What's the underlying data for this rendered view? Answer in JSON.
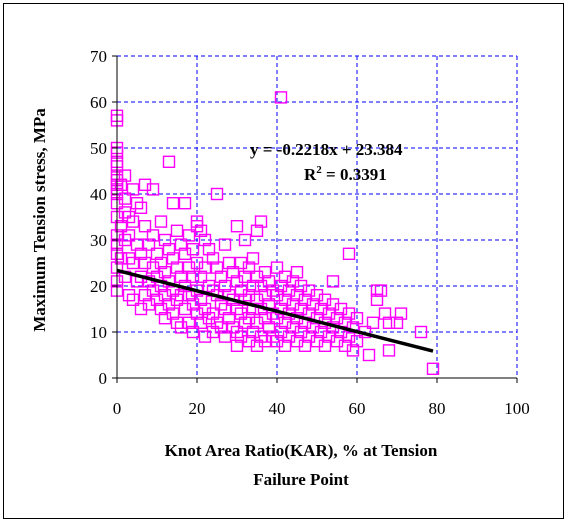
{
  "chart_data": {
    "type": "scatter",
    "title": "",
    "xlabel_line1": "Knot Area Ratio(KAR), % at Tension",
    "xlabel_line2": "Failure Point",
    "ylabel": "Maximum Tension stress, MPa",
    "xlim": [
      0,
      100
    ],
    "ylim": [
      0,
      70
    ],
    "x_ticks": [
      "0",
      "20",
      "40",
      "60",
      "80",
      "100"
    ],
    "y_ticks": [
      "0",
      "10",
      "20",
      "30",
      "40",
      "50",
      "60",
      "70"
    ],
    "grid": true,
    "marker_color": "#ff00ff",
    "trendline_color": "#000000",
    "trendline": {
      "slope": -0.2218,
      "intercept": 23.384,
      "x_range": [
        0,
        79
      ]
    },
    "equation_text": "y = -0.2218x + 23.384",
    "r2_prefix": "R",
    "r2_exp": "2",
    "r2_suffix": " = 0.3391",
    "points": [
      [
        0,
        57
      ],
      [
        0,
        56
      ],
      [
        0,
        50
      ],
      [
        0,
        49
      ],
      [
        0,
        47
      ],
      [
        0,
        46
      ],
      [
        0,
        44
      ],
      [
        0,
        43
      ],
      [
        0,
        42
      ],
      [
        0,
        41
      ],
      [
        0,
        40
      ],
      [
        0,
        38
      ],
      [
        0,
        35
      ],
      [
        0,
        31
      ],
      [
        0,
        29
      ],
      [
        0,
        27
      ],
      [
        0,
        24
      ],
      [
        0,
        21
      ],
      [
        0,
        19
      ],
      [
        1,
        42
      ],
      [
        1,
        33
      ],
      [
        1,
        26
      ],
      [
        2,
        44
      ],
      [
        2,
        39
      ],
      [
        2,
        36
      ],
      [
        2,
        30
      ],
      [
        2,
        22
      ],
      [
        3,
        35
      ],
      [
        3,
        31
      ],
      [
        3,
        26
      ],
      [
        3,
        18
      ],
      [
        4,
        41
      ],
      [
        4,
        34
      ],
      [
        4,
        25
      ],
      [
        4,
        17
      ],
      [
        5,
        38
      ],
      [
        5,
        29
      ],
      [
        5,
        21
      ],
      [
        6,
        37
      ],
      [
        6,
        27
      ],
      [
        6,
        22
      ],
      [
        6,
        15
      ],
      [
        7,
        42
      ],
      [
        7,
        33
      ],
      [
        7,
        25
      ],
      [
        7,
        18
      ],
      [
        8,
        29
      ],
      [
        8,
        21
      ],
      [
        8,
        16
      ],
      [
        9,
        41
      ],
      [
        9,
        31
      ],
      [
        9,
        24
      ],
      [
        9,
        19
      ],
      [
        10,
        27
      ],
      [
        10,
        22
      ],
      [
        10,
        17
      ],
      [
        11,
        34
      ],
      [
        11,
        25
      ],
      [
        11,
        20
      ],
      [
        11,
        15
      ],
      [
        12,
        30
      ],
      [
        12,
        23
      ],
      [
        12,
        18
      ],
      [
        12,
        13
      ],
      [
        13,
        47
      ],
      [
        13,
        28
      ],
      [
        13,
        21
      ],
      [
        13,
        16
      ],
      [
        14,
        38
      ],
      [
        14,
        26
      ],
      [
        14,
        19
      ],
      [
        14,
        14
      ],
      [
        15,
        32
      ],
      [
        15,
        24
      ],
      [
        15,
        17
      ],
      [
        15,
        12
      ],
      [
        16,
        29
      ],
      [
        16,
        22
      ],
      [
        16,
        18
      ],
      [
        16,
        11
      ],
      [
        17,
        38
      ],
      [
        17,
        27
      ],
      [
        17,
        20
      ],
      [
        17,
        15
      ],
      [
        18,
        31
      ],
      [
        18,
        24
      ],
      [
        18,
        18
      ],
      [
        18,
        12
      ],
      [
        19,
        28
      ],
      [
        19,
        22
      ],
      [
        19,
        16
      ],
      [
        19,
        10
      ],
      [
        20,
        34
      ],
      [
        20,
        33
      ],
      [
        20,
        25
      ],
      [
        20,
        19
      ],
      [
        20,
        14
      ],
      [
        21,
        32
      ],
      [
        21,
        22
      ],
      [
        21,
        17
      ],
      [
        21,
        12
      ],
      [
        22,
        30
      ],
      [
        22,
        24
      ],
      [
        22,
        15
      ],
      [
        22,
        9
      ],
      [
        23,
        28
      ],
      [
        23,
        20
      ],
      [
        23,
        13
      ],
      [
        24,
        26
      ],
      [
        24,
        19
      ],
      [
        24,
        14
      ],
      [
        24,
        10
      ],
      [
        25,
        40
      ],
      [
        25,
        24
      ],
      [
        25,
        18
      ],
      [
        25,
        12
      ],
      [
        26,
        22
      ],
      [
        26,
        16
      ],
      [
        26,
        11
      ],
      [
        27,
        29
      ],
      [
        27,
        20
      ],
      [
        27,
        15
      ],
      [
        27,
        9
      ],
      [
        28,
        25
      ],
      [
        28,
        18
      ],
      [
        28,
        13
      ],
      [
        29,
        23
      ],
      [
        29,
        17
      ],
      [
        29,
        11
      ],
      [
        30,
        33
      ],
      [
        30,
        21
      ],
      [
        30,
        15
      ],
      [
        30,
        10
      ],
      [
        30,
        7
      ],
      [
        31,
        25
      ],
      [
        31,
        19
      ],
      [
        31,
        14
      ],
      [
        31,
        9
      ],
      [
        32,
        30
      ],
      [
        32,
        22
      ],
      [
        32,
        17
      ],
      [
        32,
        12
      ],
      [
        33,
        24
      ],
      [
        33,
        18
      ],
      [
        33,
        13
      ],
      [
        33,
        8
      ],
      [
        34,
        26
      ],
      [
        34,
        20
      ],
      [
        34,
        15
      ],
      [
        34,
        10
      ],
      [
        35,
        32
      ],
      [
        35,
        22
      ],
      [
        35,
        17
      ],
      [
        35,
        12
      ],
      [
        35,
        7
      ],
      [
        36,
        34
      ],
      [
        36,
        20
      ],
      [
        36,
        15
      ],
      [
        36,
        9
      ],
      [
        37,
        23
      ],
      [
        37,
        18
      ],
      [
        37,
        13
      ],
      [
        37,
        8
      ],
      [
        38,
        21
      ],
      [
        38,
        16
      ],
      [
        38,
        11
      ],
      [
        39,
        19
      ],
      [
        39,
        14
      ],
      [
        39,
        9
      ],
      [
        40,
        24
      ],
      [
        40,
        18
      ],
      [
        40,
        13
      ],
      [
        40,
        8
      ],
      [
        41,
        61
      ],
      [
        41,
        20
      ],
      [
        41,
        15
      ],
      [
        41,
        10
      ],
      [
        42,
        22
      ],
      [
        42,
        17
      ],
      [
        42,
        12
      ],
      [
        42,
        7
      ],
      [
        43,
        19
      ],
      [
        43,
        14
      ],
      [
        43,
        9
      ],
      [
        44,
        21
      ],
      [
        44,
        16
      ],
      [
        44,
        11
      ],
      [
        45,
        23
      ],
      [
        45,
        18
      ],
      [
        45,
        13
      ],
      [
        45,
        8
      ],
      [
        46,
        20
      ],
      [
        46,
        15
      ],
      [
        46,
        10
      ],
      [
        47,
        17
      ],
      [
        47,
        12
      ],
      [
        47,
        7
      ],
      [
        48,
        19
      ],
      [
        48,
        14
      ],
      [
        48,
        9
      ],
      [
        49,
        16
      ],
      [
        49,
        11
      ],
      [
        50,
        18
      ],
      [
        50,
        13
      ],
      [
        50,
        8
      ],
      [
        51,
        15
      ],
      [
        51,
        10
      ],
      [
        52,
        17
      ],
      [
        52,
        12
      ],
      [
        52,
        7
      ],
      [
        53,
        14
      ],
      [
        53,
        9
      ],
      [
        54,
        21
      ],
      [
        54,
        16
      ],
      [
        54,
        11
      ],
      [
        55,
        13
      ],
      [
        55,
        8
      ],
      [
        56,
        15
      ],
      [
        56,
        10
      ],
      [
        57,
        12
      ],
      [
        57,
        7
      ],
      [
        58,
        27
      ],
      [
        58,
        14
      ],
      [
        58,
        9
      ],
      [
        59,
        11
      ],
      [
        59,
        6
      ],
      [
        60,
        13
      ],
      [
        60,
        8
      ],
      [
        62,
        10
      ],
      [
        63,
        5
      ],
      [
        64,
        12
      ],
      [
        65,
        19
      ],
      [
        65,
        17
      ],
      [
        66,
        19
      ],
      [
        67,
        14
      ],
      [
        68,
        12
      ],
      [
        68,
        6
      ],
      [
        70,
        12
      ],
      [
        71,
        14
      ],
      [
        76,
        10
      ],
      [
        79,
        2
      ]
    ]
  }
}
